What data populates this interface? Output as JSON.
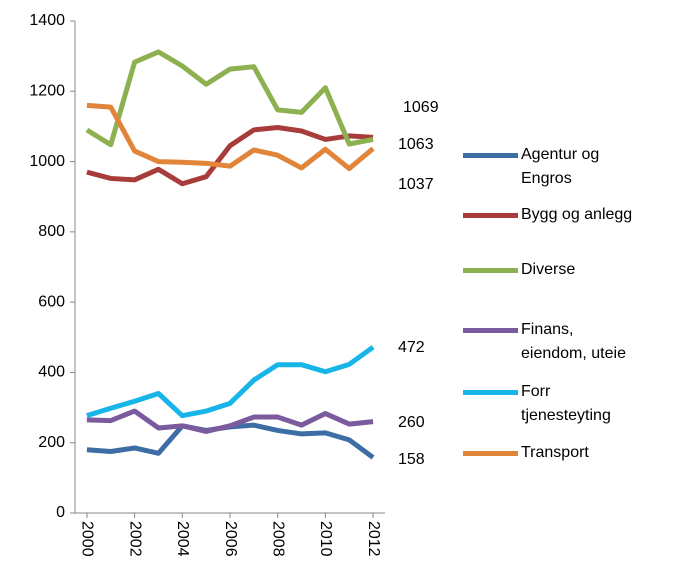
{
  "chart_data": {
    "type": "line",
    "x": [
      2000,
      2001,
      2002,
      2003,
      2004,
      2005,
      2006,
      2007,
      2008,
      2009,
      2010,
      2011,
      2012
    ],
    "xlim": [
      1999.5,
      2012.5
    ],
    "xticks": [
      2000,
      2002,
      2004,
      2006,
      2008,
      2010,
      2012
    ],
    "ylim": [
      0,
      1400
    ],
    "yticks": [
      0,
      200,
      400,
      600,
      800,
      1000,
      1200,
      1400
    ],
    "grid": false,
    "legend": "right",
    "series": [
      {
        "name": "Agentur og\nEngros",
        "color": "#3c6ea5",
        "values": [
          180,
          175,
          185,
          170,
          248,
          235,
          245,
          250,
          235,
          225,
          228,
          208,
          158
        ]
      },
      {
        "name": "Bygg og anlegg",
        "color": "#a83c3a",
        "values": [
          970,
          952,
          948,
          978,
          937,
          957,
          1045,
          1090,
          1097,
          1087,
          1063,
          1073,
          1069
        ]
      },
      {
        "name": "Diverse",
        "color": "#8db050",
        "values": [
          1090,
          1048,
          1283,
          1312,
          1272,
          1220,
          1263,
          1270,
          1147,
          1140,
          1210,
          1050,
          1063
        ]
      },
      {
        "name": "Finans,\neiendom, uteie",
        "color": "#7c5a9e",
        "values": [
          265,
          263,
          290,
          242,
          248,
          232,
          248,
          273,
          273,
          250,
          283,
          253,
          260
        ]
      },
      {
        "name": "Forr\ntjenesteyting",
        "color": "#17b5e8",
        "values": [
          277,
          298,
          318,
          340,
          277,
          290,
          312,
          378,
          422,
          422,
          402,
          423,
          472
        ]
      },
      {
        "name": "Transport",
        "color": "#e0853a",
        "values": [
          1160,
          1155,
          1030,
          1000,
          998,
          995,
          987,
          1033,
          1018,
          982,
          1035,
          980,
          1037
        ]
      }
    ]
  }
}
